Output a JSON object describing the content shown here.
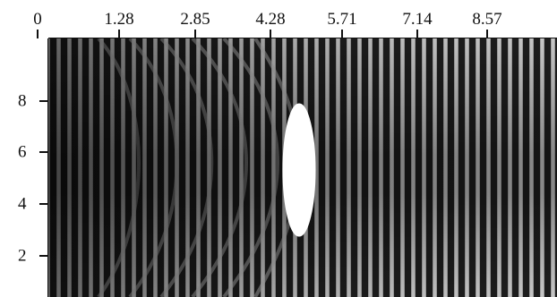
{
  "figure": {
    "x_ticks": [
      "0",
      "1.28",
      "2.85",
      "4.28",
      "5.71",
      "7.14",
      "8.57"
    ],
    "y_ticks": [
      "8",
      "6",
      "4",
      "2"
    ]
  },
  "colors": {
    "background": "#ffffff",
    "field_dark": "#1c1c1c",
    "field_light": "#e6e6e6",
    "obstacle": "#ffffff"
  }
}
